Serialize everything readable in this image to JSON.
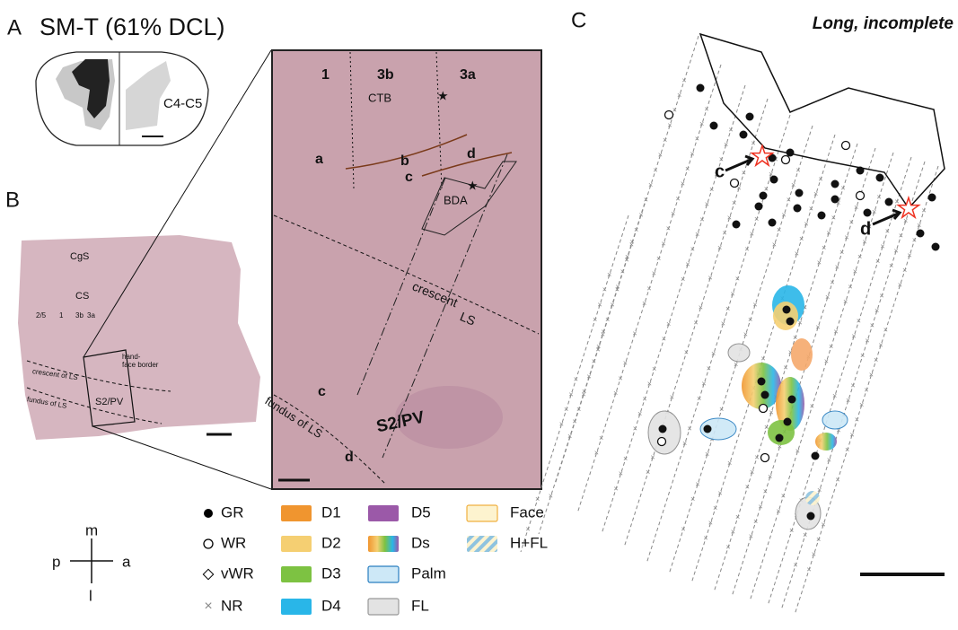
{
  "panel_a": {
    "label": "A",
    "title": "SM-T (61% DCL)",
    "level": "C4-C5"
  },
  "panel_b": {
    "label": "B",
    "sulci": [
      "CgS",
      "CS"
    ],
    "areas": [
      "2/5",
      "1",
      "3b",
      "3a"
    ],
    "border": [
      "hand-",
      "face border"
    ],
    "crescent": "crescent of LS",
    "fundus": "fundus of LS",
    "region": "S2/PV"
  },
  "panel_zoom": {
    "areas": [
      "1",
      "3b",
      "3a"
    ],
    "tracers": [
      "CTB",
      "BDA"
    ],
    "sites": [
      "a",
      "b",
      "c",
      "d"
    ],
    "sites_lower": [
      "c",
      "d"
    ],
    "crescent": [
      "crescent",
      "LS"
    ],
    "region": "S2/PV",
    "fundus": "fundus of LS"
  },
  "compass": {
    "medial": "m",
    "posterior": "p",
    "anterior": "a",
    "lateral": "l"
  },
  "legend": [
    {
      "label": "GR",
      "color": "#000000"
    },
    {
      "label": "WR",
      "color": "#000000"
    },
    {
      "label": "vWR",
      "color": "#000000"
    },
    {
      "label": "NR",
      "color": "#888888"
    },
    {
      "label": "D1",
      "color": "#f0952f"
    },
    {
      "label": "D2",
      "color": "#f5cf72"
    },
    {
      "label": "D3",
      "color": "#7dc242"
    },
    {
      "label": "D4",
      "color": "#29b6e8"
    },
    {
      "label": "D5",
      "color": "#9b59a8"
    },
    {
      "label": "Ds",
      "color": "#f5a86b"
    },
    {
      "label": "Palm",
      "color": "#cde8f7"
    },
    {
      "label": "FL",
      "color": "#e3e3e3"
    },
    {
      "label": "Face",
      "color": "#fdf3cf"
    },
    {
      "label": "H+FL",
      "color": "#8fc3df"
    }
  ],
  "panel_c": {
    "label": "C",
    "title": "Long, incomplete",
    "sites": [
      "c",
      "d"
    ]
  }
}
